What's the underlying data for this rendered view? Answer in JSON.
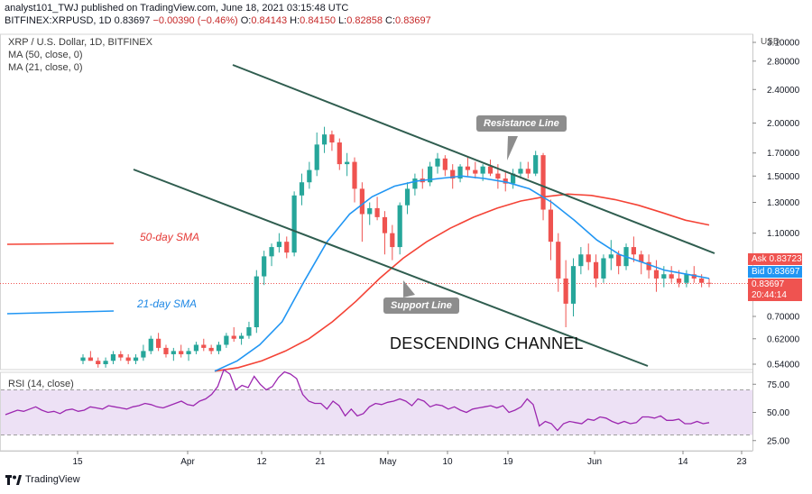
{
  "header": {
    "line1": "analyst101_TWJ published on TradingView.com, June 18, 2021 03:15:48 UTC",
    "symbol": "BITFINEX:XRPUSD, 1D",
    "price": "0.83697",
    "change": "−0.00390 (−0.46%)",
    "open_label": "O:",
    "open": "0.84143",
    "high_label": "H:",
    "high": "0.84150",
    "low_label": "L:",
    "low": "0.82858",
    "close_label": "C:",
    "close": "0.83697"
  },
  "legend": {
    "symbol_line": "XRP / U.S. Dollar, 1D, BITFINEX",
    "ma50": "MA (50, close, 0)",
    "ma21": "MA (21, close, 0)"
  },
  "annotations": {
    "resistance": "Resistance Line",
    "support": "Support Line",
    "sma50": "50-day SMA",
    "sma21": "21-day SMA",
    "channel": "DESCENDING CHANNEL"
  },
  "price_scale": {
    "currency": "USD",
    "ticks": [
      "3.10000",
      "2.80000",
      "2.40000",
      "2.00000",
      "1.70000",
      "1.50000",
      "1.30000",
      "1.10000",
      "0.83697",
      "0.70000",
      "0.62000",
      "0.54000"
    ],
    "tick_values": [
      3.1,
      2.8,
      2.4,
      2.0,
      1.7,
      1.5,
      1.3,
      1.1,
      0.83697,
      0.7,
      0.62,
      0.54
    ]
  },
  "price_tags": {
    "ask_label": "Ask",
    "ask": "0.83723",
    "bid_label": "Bid",
    "bid": "0.83697",
    "last": "0.83697",
    "countdown": "20:44:14"
  },
  "rsi": {
    "label": "RSI (14, close)",
    "ticks": [
      "75.00",
      "50.00",
      "25.00"
    ],
    "tick_values": [
      75,
      50,
      25
    ],
    "upper_band": 70,
    "lower_band": 30
  },
  "x_axis": {
    "ticks": [
      "15",
      "Apr",
      "12",
      "21",
      "May",
      "10",
      "19",
      "Jun",
      "14",
      "23"
    ]
  },
  "colors": {
    "up": "#26a69a",
    "down": "#ef5350",
    "ma50": "#f44336",
    "ma21": "#2196f3",
    "channel": "#2f5d4f",
    "rsi_line": "#9c27b0",
    "rsi_band": "#ede1f5",
    "ask": "#ef5350",
    "bid": "#2196f3"
  },
  "chart_data": {
    "type": "candlestick",
    "y_scale": "log",
    "ylim": [
      0.5,
      3.2
    ],
    "ohlc_approx_daily": [
      [
        0.55,
        0.57,
        0.54,
        0.56
      ],
      [
        0.56,
        0.58,
        0.55,
        0.55
      ],
      [
        0.55,
        0.56,
        0.53,
        0.54
      ],
      [
        0.54,
        0.56,
        0.53,
        0.55
      ],
      [
        0.55,
        0.58,
        0.54,
        0.57
      ],
      [
        0.57,
        0.58,
        0.55,
        0.56
      ],
      [
        0.56,
        0.57,
        0.54,
        0.55
      ],
      [
        0.55,
        0.57,
        0.54,
        0.56
      ],
      [
        0.56,
        0.6,
        0.55,
        0.58
      ],
      [
        0.58,
        0.63,
        0.57,
        0.62
      ],
      [
        0.62,
        0.64,
        0.58,
        0.59
      ],
      [
        0.59,
        0.6,
        0.56,
        0.57
      ],
      [
        0.57,
        0.59,
        0.55,
        0.58
      ],
      [
        0.58,
        0.6,
        0.56,
        0.57
      ],
      [
        0.57,
        0.59,
        0.55,
        0.58
      ],
      [
        0.58,
        0.61,
        0.57,
        0.6
      ],
      [
        0.6,
        0.62,
        0.58,
        0.59
      ],
      [
        0.59,
        0.6,
        0.57,
        0.58
      ],
      [
        0.58,
        0.61,
        0.57,
        0.6
      ],
      [
        0.6,
        0.64,
        0.59,
        0.63
      ],
      [
        0.63,
        0.66,
        0.61,
        0.62
      ],
      [
        0.62,
        0.64,
        0.6,
        0.63
      ],
      [
        0.63,
        0.68,
        0.62,
        0.66
      ],
      [
        0.66,
        0.9,
        0.64,
        0.87
      ],
      [
        0.87,
        1.0,
        0.83,
        0.97
      ],
      [
        0.97,
        1.04,
        0.92,
        1.02
      ],
      [
        1.02,
        1.1,
        0.99,
        1.05
      ],
      [
        1.05,
        1.08,
        0.96,
        0.99
      ],
      [
        0.99,
        1.38,
        0.97,
        1.35
      ],
      [
        1.35,
        1.52,
        1.28,
        1.45
      ],
      [
        1.45,
        1.62,
        1.4,
        1.55
      ],
      [
        1.55,
        1.9,
        1.5,
        1.78
      ],
      [
        1.78,
        1.96,
        1.7,
        1.88
      ],
      [
        1.88,
        1.92,
        1.72,
        1.8
      ],
      [
        1.8,
        1.84,
        1.55,
        1.6
      ],
      [
        1.6,
        1.7,
        1.5,
        1.62
      ],
      [
        1.62,
        1.66,
        1.3,
        1.4
      ],
      [
        1.4,
        1.45,
        1.05,
        1.22
      ],
      [
        1.22,
        1.3,
        1.15,
        1.26
      ],
      [
        1.26,
        1.34,
        1.18,
        1.2
      ],
      [
        1.2,
        1.24,
        0.98,
        1.1
      ],
      [
        1.1,
        1.15,
        0.95,
        1.02
      ],
      [
        1.02,
        1.3,
        0.98,
        1.28
      ],
      [
        1.28,
        1.45,
        1.22,
        1.4
      ],
      [
        1.4,
        1.52,
        1.35,
        1.48
      ],
      [
        1.48,
        1.56,
        1.4,
        1.45
      ],
      [
        1.45,
        1.62,
        1.42,
        1.58
      ],
      [
        1.58,
        1.7,
        1.52,
        1.65
      ],
      [
        1.65,
        1.68,
        1.5,
        1.55
      ],
      [
        1.55,
        1.6,
        1.4,
        1.48
      ],
      [
        1.48,
        1.6,
        1.45,
        1.58
      ],
      [
        1.58,
        1.66,
        1.5,
        1.55
      ],
      [
        1.55,
        1.62,
        1.48,
        1.52
      ],
      [
        1.52,
        1.6,
        1.46,
        1.58
      ],
      [
        1.58,
        1.64,
        1.5,
        1.52
      ],
      [
        1.52,
        1.6,
        1.4,
        1.48
      ],
      [
        1.48,
        1.54,
        1.38,
        1.44
      ],
      [
        1.44,
        1.56,
        1.4,
        1.52
      ],
      [
        1.52,
        1.62,
        1.48,
        1.56
      ],
      [
        1.56,
        1.62,
        1.48,
        1.52
      ],
      [
        1.52,
        1.72,
        1.5,
        1.68
      ],
      [
        1.68,
        1.7,
        1.18,
        1.25
      ],
      [
        1.25,
        1.32,
        0.95,
        1.05
      ],
      [
        1.05,
        1.1,
        0.8,
        0.86
      ],
      [
        0.86,
        0.95,
        0.66,
        0.75
      ],
      [
        0.75,
        0.96,
        0.7,
        0.92
      ],
      [
        0.92,
        1.02,
        0.88,
        0.98
      ],
      [
        0.98,
        1.04,
        0.9,
        0.94
      ],
      [
        0.94,
        0.98,
        0.82,
        0.86
      ],
      [
        0.86,
        0.98,
        0.84,
        0.96
      ],
      [
        0.96,
        1.06,
        0.9,
        0.98
      ],
      [
        0.98,
        1.0,
        0.88,
        0.92
      ],
      [
        0.92,
        1.04,
        0.9,
        1.02
      ],
      [
        1.02,
        1.08,
        0.94,
        0.98
      ],
      [
        0.98,
        1.0,
        0.88,
        0.94
      ],
      [
        0.94,
        0.98,
        0.86,
        0.9
      ],
      [
        0.9,
        0.95,
        0.8,
        0.86
      ],
      [
        0.86,
        0.92,
        0.82,
        0.88
      ],
      [
        0.88,
        0.92,
        0.84,
        0.86
      ],
      [
        0.86,
        0.9,
        0.82,
        0.84
      ],
      [
        0.84,
        0.9,
        0.82,
        0.88
      ],
      [
        0.88,
        0.92,
        0.84,
        0.86
      ],
      [
        0.86,
        0.88,
        0.82,
        0.84
      ],
      [
        0.84,
        0.86,
        0.82,
        0.837
      ]
    ],
    "ma50_approx": [
      0.52,
      0.53,
      0.55,
      0.58,
      0.62,
      0.68,
      0.76,
      0.86,
      0.96,
      1.05,
      1.13,
      1.2,
      1.26,
      1.31,
      1.34,
      1.36,
      1.35,
      1.32,
      1.28,
      1.23,
      1.18,
      1.15
    ],
    "ma21_approx": [
      0.52,
      0.55,
      0.6,
      0.68,
      0.85,
      1.05,
      1.22,
      1.34,
      1.42,
      1.46,
      1.48,
      1.5,
      1.48,
      1.45,
      1.4,
      1.3,
      1.18,
      1.06,
      0.98,
      0.94,
      0.9,
      0.88,
      0.86
    ]
  }
}
